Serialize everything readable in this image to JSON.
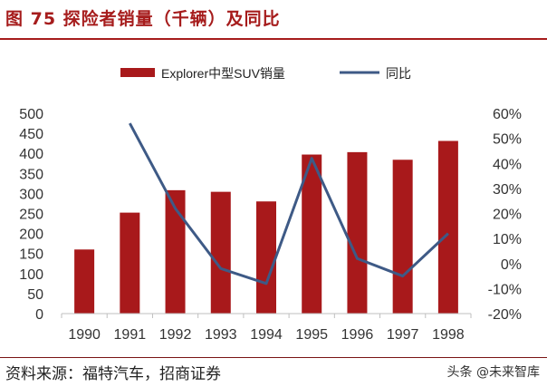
{
  "figure": {
    "title": "图 75 探险者销量（千辆）及同比",
    "source": "资料来源：福特汽车，招商证券",
    "watermark": "头条 @未来智库"
  },
  "colors": {
    "title": "#a61c1c",
    "bar": "#a8191b",
    "line": "#3e5a86"
  },
  "chart_data": {
    "type": "bar",
    "categories": [
      "1990",
      "1991",
      "1992",
      "1993",
      "1994",
      "1995",
      "1996",
      "1997",
      "1998"
    ],
    "series": [
      {
        "name": "Explorer中型SUV销量",
        "type": "bar",
        "axis": "left",
        "values": [
          160,
          252,
          308,
          304,
          280,
          397,
          403,
          384,
          431
        ]
      },
      {
        "name": "同比",
        "type": "line",
        "axis": "right",
        "values": [
          null,
          56,
          22,
          -2,
          -8,
          42,
          2,
          -5,
          12
        ]
      }
    ],
    "y_left": {
      "min": 0,
      "max": 500,
      "step": 50,
      "ticks": [
        "0",
        "50",
        "100",
        "150",
        "200",
        "250",
        "300",
        "350",
        "400",
        "450",
        "500"
      ]
    },
    "y_right": {
      "min": -20,
      "max": 60,
      "step": 10,
      "ticks": [
        "-20%",
        "-10%",
        "0%",
        "10%",
        "20%",
        "30%",
        "40%",
        "50%",
        "60%"
      ]
    },
    "legend_position": "top",
    "grid": false
  }
}
